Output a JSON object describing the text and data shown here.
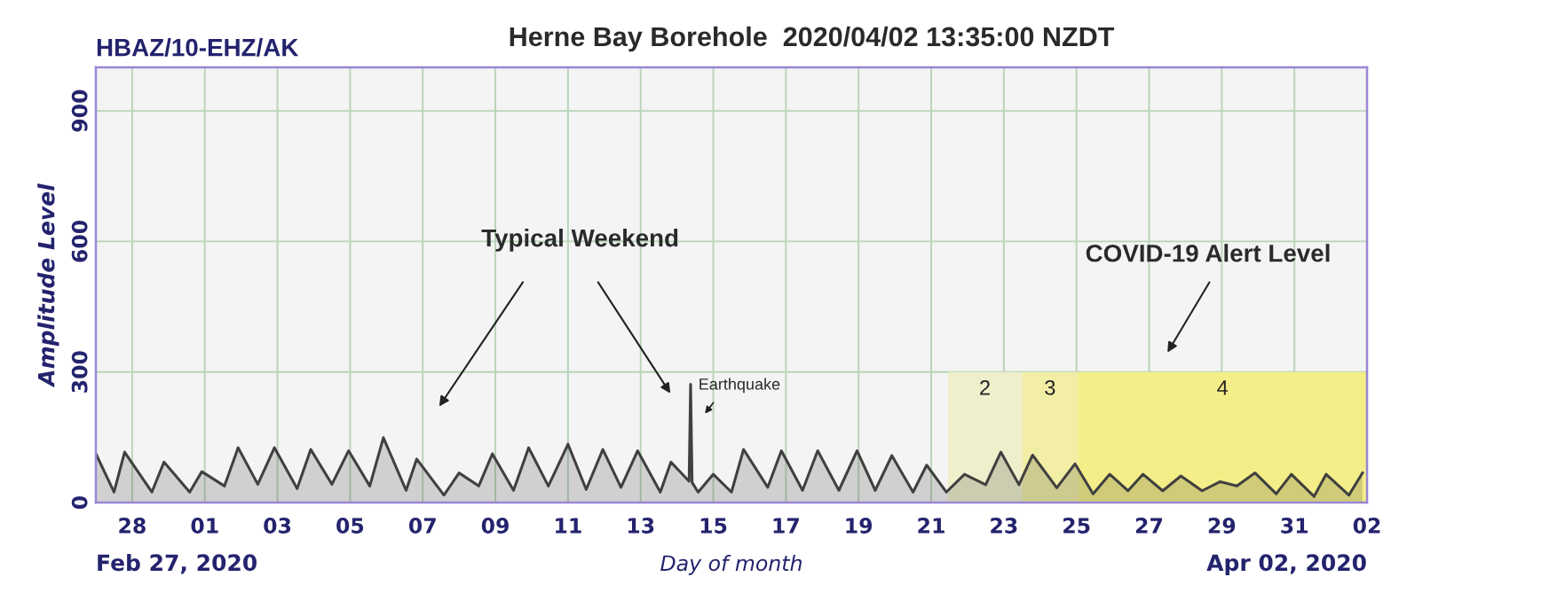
{
  "chart_data": {
    "type": "area",
    "title": "Herne Bay Borehole  2020/04/02 13:35:00 NZDT",
    "subtitle": "HBAZ/10-EHZ/AK",
    "xlabel": "Day of month",
    "ylabel": "Amplitude Level",
    "x": [
      "2020-02-27T00:00",
      "2020-02-27T12:00",
      "2020-02-27T19:00",
      "2020-02-28T13:00",
      "2020-02-28T21:00",
      "2020-02-29T14:00",
      "2020-02-29T22:00",
      "2020-03-01T13:00",
      "2020-03-01T22:00",
      "2020-03-02T11:00",
      "2020-03-02T22:00",
      "2020-03-03T13:00",
      "2020-03-03T22:00",
      "2020-03-04T12:00",
      "2020-03-04T23:00",
      "2020-03-05T13:00",
      "2020-03-05T22:00",
      "2020-03-06T13:00",
      "2020-03-06T20:00",
      "2020-03-07T14:00",
      "2020-03-08T00:00",
      "2020-03-08T13:00",
      "2020-03-08T22:00",
      "2020-03-09T12:00",
      "2020-03-09T22:00",
      "2020-03-10T11:00",
      "2020-03-11T00:00",
      "2020-03-11T12:00",
      "2020-03-11T23:00",
      "2020-03-12T11:00",
      "2020-03-12T22:00",
      "2020-03-13T13:00",
      "2020-03-13T20:00",
      "2020-03-14T08:00",
      "2020-03-14T09:00",
      "2020-03-14T10:00",
      "2020-03-14T14:00",
      "2020-03-15T00:00",
      "2020-03-15T12:00",
      "2020-03-15T20:00",
      "2020-03-16T12:00",
      "2020-03-16T21:00",
      "2020-03-17T11:00",
      "2020-03-17T21:00",
      "2020-03-18T11:00",
      "2020-03-18T23:00",
      "2020-03-19T11:00",
      "2020-03-19T22:00",
      "2020-03-20T12:00",
      "2020-03-20T21:00",
      "2020-03-21T10:00",
      "2020-03-21T22:00",
      "2020-03-22T12:00",
      "2020-03-22T22:00",
      "2020-03-23T10:00",
      "2020-03-23T19:00",
      "2020-03-24T11:00",
      "2020-03-24T23:00",
      "2020-03-25T11:00",
      "2020-03-25T22:00",
      "2020-03-26T10:00",
      "2020-03-26T20:00",
      "2020-03-27T09:00",
      "2020-03-27T21:00",
      "2020-03-28T11:00",
      "2020-03-28T23:00",
      "2020-03-29T10:00",
      "2020-03-29T22:00",
      "2020-03-30T12:00",
      "2020-03-30T22:00",
      "2020-03-31T13:00",
      "2020-03-31T21:00",
      "2020-04-01T12:00",
      "2020-04-01T21:00"
    ],
    "series": [
      {
        "color": "#404040",
        "values": [
          112,
          24,
          116,
          24,
          93,
          24,
          71,
          38,
          126,
          42,
          126,
          32,
          122,
          42,
          119,
          38,
          149,
          28,
          100,
          17,
          68,
          38,
          112,
          28,
          126,
          38,
          134,
          30,
          122,
          35,
          119,
          24,
          93,
          49,
          272,
          46,
          24,
          65,
          24,
          122,
          35,
          119,
          28,
          119,
          28,
          119,
          28,
          108,
          24,
          86,
          24,
          65,
          41,
          116,
          41,
          109,
          34,
          89,
          20,
          65,
          27,
          65,
          27,
          61,
          27,
          48,
          38,
          68,
          20,
          65,
          14,
          65,
          17,
          68
        ]
      }
    ],
    "xlim": [
      "2020-02-27T00:00",
      "2020-04-02T00:00"
    ],
    "xticks": [
      {
        "value": "2020-02-28",
        "label": "28"
      },
      {
        "value": "2020-03-01",
        "label": "01"
      },
      {
        "value": "2020-03-03",
        "label": "03"
      },
      {
        "value": "2020-03-05",
        "label": "05"
      },
      {
        "value": "2020-03-07",
        "label": "07"
      },
      {
        "value": "2020-03-09",
        "label": "09"
      },
      {
        "value": "2020-03-11",
        "label": "11"
      },
      {
        "value": "2020-03-13",
        "label": "13"
      },
      {
        "value": "2020-03-15",
        "label": "15"
      },
      {
        "value": "2020-03-17",
        "label": "17"
      },
      {
        "value": "2020-03-19",
        "label": "19"
      },
      {
        "value": "2020-03-21",
        "label": "21"
      },
      {
        "value": "2020-03-23",
        "label": "23"
      },
      {
        "value": "2020-03-25",
        "label": "25"
      },
      {
        "value": "2020-03-27",
        "label": "27"
      },
      {
        "value": "2020-03-29",
        "label": "29"
      },
      {
        "value": "2020-03-31",
        "label": "31"
      },
      {
        "value": "2020-04-02",
        "label": "02"
      }
    ],
    "ylim": [
      0,
      1000
    ],
    "yticks": [
      0,
      300,
      600,
      900
    ],
    "grid": true,
    "bands": [
      {
        "axis": "x",
        "from": "2020-03-21T11:00",
        "to": "2020-03-23T12:00",
        "label": "2",
        "color": "#efefcc"
      },
      {
        "axis": "x",
        "from": "2020-03-23T12:00",
        "to": "2020-03-25T01:00",
        "label": "3",
        "color": "#f2eea6"
      },
      {
        "axis": "x",
        "from": "2020-03-25T01:00",
        "to": "2020-04-02T00:00",
        "label": "4",
        "color": "#f4ee88"
      }
    ],
    "annotations": [
      "Typical Weekend",
      "Earthquake",
      "COVID-19 Alert Level",
      "Feb 27, 2020",
      "Apr 02, 2020"
    ]
  }
}
